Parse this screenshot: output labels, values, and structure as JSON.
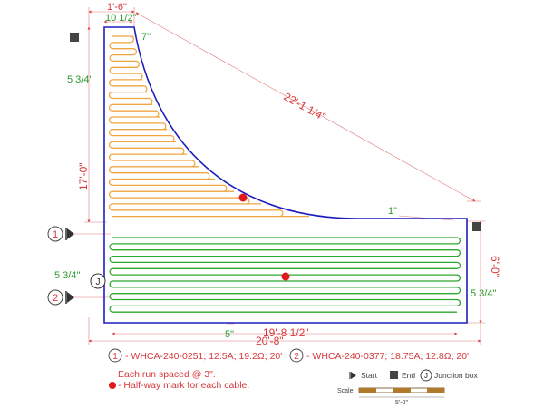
{
  "colors": {
    "outline": "#1f1fbf",
    "cable1": "#f0a640",
    "cable2": "#2ea82e",
    "dimension": "#d8383c",
    "green_dim": "#2d9a2d",
    "marker": "#e0191b",
    "end_marker": "#444444"
  },
  "dimensions": {
    "top_width": "1'-6\"",
    "top_inner": "10 1/2\"",
    "top_offset": "7\"",
    "left_margin": "5 3/4\"",
    "left_height": "17'-0\"",
    "diagonal": "22'-1 1/4\"",
    "curve_gap": "1\"",
    "right_height": "6'-0\"",
    "bottom_left_margin": "5 3/4\"",
    "right_margin": "5 3/4\"",
    "bottom_offset": "5\"",
    "bottom_inner": "19'-8 1/2\"",
    "bottom_total": "20'-8\""
  },
  "markers": {
    "cable1_number": "1",
    "cable2_number": "2",
    "junction_letter": "J"
  },
  "legend": {
    "cable1_number": "1",
    "cable1_text": "- WHCA-240-0251; 12.5A; 19.2Ω; 20'",
    "cable2_number": "2",
    "cable2_text": "- WHCA-240-0377; 18.75A; 12.8Ω; 20'",
    "spacing_note": "Each run spaced @ 3\".",
    "halfway_note": "- Half-way mark for each cable."
  },
  "key": {
    "start_label": "Start",
    "end_label": "End",
    "junction_letter": "J",
    "junction_label": "Junction box"
  },
  "scale": {
    "label": "Scale",
    "length": "5'-0\""
  }
}
